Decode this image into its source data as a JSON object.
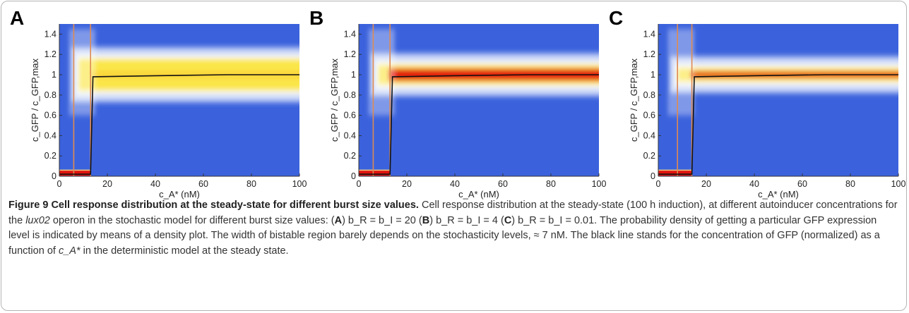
{
  "figure_number": "Figure 9",
  "figure_title": "Cell response distribution at the steady-state for different burst size values.",
  "caption": {
    "s1": " Cell response distribution at the steady-state (100 h induction), at different autoinducer concentrations for the ",
    "operon": "lux02",
    "s2": " operon in the stochastic model for different burst size values: (",
    "A": "A",
    "eqA": " b_R = b_I = 20 (",
    "B": "B",
    "eqB": ") b_R = b_I = 4 (",
    "C": "C",
    "eqC": ") b_R = b_I = 0.01. The probability density of getting a particular GFP expression level is indicated by means of a density plot. The width of bistable region barely depends on the stochasticity levels, ≈ 7 nM. The black line stands for the concentration of GFP (normalized) as a function of ",
    "cvar": "c_A*",
    "s3": " in the deterministic model at the steady state."
  },
  "axis_labels": {
    "y": "c_GFP / c_GFP,max",
    "x": "c_A* (nM)"
  },
  "colors": {
    "background": "#3b62dc",
    "yellow": "#fbe64a",
    "red": "#e3150e",
    "orange_line": "#df8a52",
    "black_line": "#111111"
  },
  "chart_data": [
    {
      "type": "heatmap",
      "panel_label": "A",
      "xlabel": "c_A* (nM)",
      "ylabel": "c_GFP / c_GFP,max",
      "xlim": [
        0,
        100
      ],
      "ylim": [
        0,
        1.5
      ],
      "x_ticks": [
        0,
        20,
        40,
        60,
        80,
        100
      ],
      "y_ticks": [
        0,
        0.2,
        0.4,
        0.6,
        0.8,
        1,
        1.2,
        1.4
      ],
      "x_tick_labels": [
        "0",
        "20",
        "40",
        "60",
        "80",
        "100"
      ],
      "y_tick_labels": [
        "0",
        "0.2",
        "0.4",
        "0.6",
        "0.8",
        "1",
        "1.2",
        "1.4"
      ],
      "bistable_region": [
        6,
        13
      ],
      "deterministic_curve": {
        "x": [
          0,
          13,
          13.5,
          14,
          40,
          70,
          100
        ],
        "y": [
          0.02,
          0.02,
          0.5,
          0.98,
          0.99,
          1.0,
          1.0
        ]
      },
      "density_high_band": {
        "y_center": 1.0,
        "width": 0.28,
        "peak": "yellow"
      },
      "density_low_band": {
        "x_range": [
          0,
          13
        ],
        "y": 0.03,
        "peak": "red"
      }
    },
    {
      "type": "heatmap",
      "panel_label": "B",
      "xlabel": "c_A* (nM)",
      "ylabel": "c_GFP / c_GFP,max",
      "xlim": [
        0,
        100
      ],
      "ylim": [
        0,
        1.5
      ],
      "x_ticks": [
        0,
        20,
        40,
        60,
        80,
        100
      ],
      "y_ticks": [
        0,
        0.2,
        0.4,
        0.6,
        0.8,
        1,
        1.2,
        1.4
      ],
      "x_tick_labels": [
        "0",
        "20",
        "40",
        "60",
        "80",
        "100"
      ],
      "y_tick_labels": [
        "0",
        "0.2",
        "0.4",
        "0.6",
        "0.8",
        "1",
        "1.2",
        "1.4"
      ],
      "bistable_region": [
        6,
        13
      ],
      "deterministic_curve": {
        "x": [
          0,
          13,
          13.5,
          14,
          40,
          70,
          100
        ],
        "y": [
          0.02,
          0.02,
          0.5,
          0.98,
          0.99,
          1.0,
          1.0
        ]
      },
      "density_high_band": {
        "y_center": 1.0,
        "width": 0.16,
        "peak": "red"
      },
      "density_low_band": {
        "x_range": [
          0,
          13
        ],
        "y": 0.03,
        "peak": "red"
      }
    },
    {
      "type": "heatmap",
      "panel_label": "C",
      "xlabel": "c_A* (nM)",
      "ylabel": "c_GFP / c_GFP,max",
      "xlim": [
        0,
        100
      ],
      "ylim": [
        0,
        1.5
      ],
      "x_ticks": [
        0,
        20,
        40,
        60,
        80,
        100
      ],
      "y_ticks": [
        0,
        0.2,
        0.4,
        0.6,
        0.8,
        1,
        1.2,
        1.4
      ],
      "x_tick_labels": [
        "0",
        "20",
        "40",
        "60",
        "80",
        "100"
      ],
      "y_tick_labels": [
        "0",
        "0.2",
        "0.4",
        "0.6",
        "0.8",
        "1",
        "1.2",
        "1.4"
      ],
      "bistable_region": [
        8,
        14
      ],
      "deterministic_curve": {
        "x": [
          0,
          14,
          14.5,
          15,
          40,
          70,
          100
        ],
        "y": [
          0.02,
          0.02,
          0.5,
          0.98,
          0.99,
          1.0,
          1.0
        ]
      },
      "density_high_band": {
        "y_center": 1.0,
        "width": 0.1,
        "peak": "red"
      },
      "density_low_band": {
        "x_range": [
          0,
          14
        ],
        "y": 0.03,
        "peak": "red"
      }
    }
  ]
}
